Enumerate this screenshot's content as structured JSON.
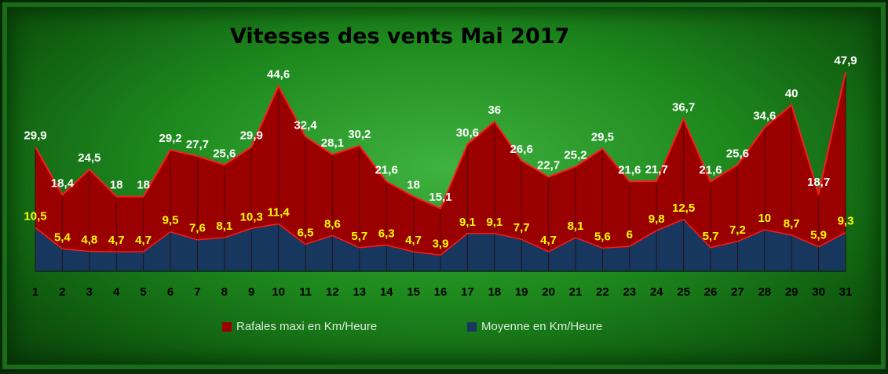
{
  "chart_data": {
    "type": "area",
    "title": "Vitesses des vents Mai 2017",
    "x": [
      1,
      2,
      3,
      4,
      5,
      6,
      7,
      8,
      9,
      10,
      11,
      12,
      13,
      14,
      15,
      16,
      17,
      18,
      19,
      20,
      21,
      22,
      23,
      24,
      25,
      26,
      27,
      28,
      29,
      30,
      31
    ],
    "x_tick_labels": [
      "1",
      "2",
      "3",
      "4",
      "5",
      "6",
      "7",
      "8",
      "9",
      "10",
      "11",
      "12",
      "13",
      "14",
      "15",
      "16",
      "17",
      "18",
      "19",
      "20",
      "21",
      "22",
      "23",
      "24",
      "25",
      "26",
      "27",
      "28",
      "29",
      "30",
      "31"
    ],
    "ylim": [
      0,
      50
    ],
    "grid": "vertical",
    "legend_position": "bottom",
    "series": [
      {
        "name": "Rafales maxi en Km/Heure",
        "color": "#9b0000",
        "line_color": "#ff1a1a",
        "label_color": "#ffffff",
        "values": [
          29.9,
          18.4,
          24.5,
          18,
          18,
          29.2,
          27.7,
          25.6,
          29.9,
          44.6,
          32.4,
          28.1,
          30.2,
          21.6,
          18,
          15.1,
          30.6,
          36,
          26.6,
          22.7,
          25.2,
          29.5,
          21.6,
          21.7,
          36.7,
          21.6,
          25.6,
          34.6,
          40,
          18.7,
          47.9
        ],
        "value_labels": [
          "29,9",
          "18,4",
          "24,5",
          "18",
          "18",
          "29,2",
          "27,7",
          "25,6",
          "29,9",
          "44,6",
          "32,4",
          "28,1",
          "30,2",
          "21,6",
          "18",
          "15,1",
          "30,6",
          "36",
          "26,6",
          "22,7",
          "25,2",
          "29,5",
          "21,6",
          "21,7",
          "36,7",
          "21,6",
          "25,6",
          "34,6",
          "40",
          "18,7",
          "47,9"
        ]
      },
      {
        "name": "Moyenne en Km/Heure",
        "color": "#17375e",
        "line_color": "#ff1a1a",
        "label_color": "#ffff00",
        "values": [
          10.5,
          5.4,
          4.8,
          4.7,
          4.7,
          9.5,
          7.6,
          8.1,
          10.3,
          11.4,
          6.5,
          8.6,
          5.7,
          6.3,
          4.7,
          3.9,
          9.1,
          9.1,
          7.7,
          4.7,
          8.1,
          5.6,
          6,
          9.8,
          12.5,
          5.7,
          7.2,
          10,
          8.7,
          5.9,
          9.3
        ],
        "value_labels": [
          "10,5",
          "5,4",
          "4,8",
          "4,7",
          "4,7",
          "9,5",
          "7,6",
          "8,1",
          "10,3",
          "11,4",
          "6,5",
          "8,6",
          "5,7",
          "6,3",
          "4,7",
          "3,9",
          "9,1",
          "9,1",
          "7,7",
          "4,7",
          "8,1",
          "5,6",
          "6",
          "9,8",
          "12,5",
          "5,7",
          "7,2",
          "10",
          "8,7",
          "5,9",
          "9,3"
        ]
      }
    ]
  }
}
